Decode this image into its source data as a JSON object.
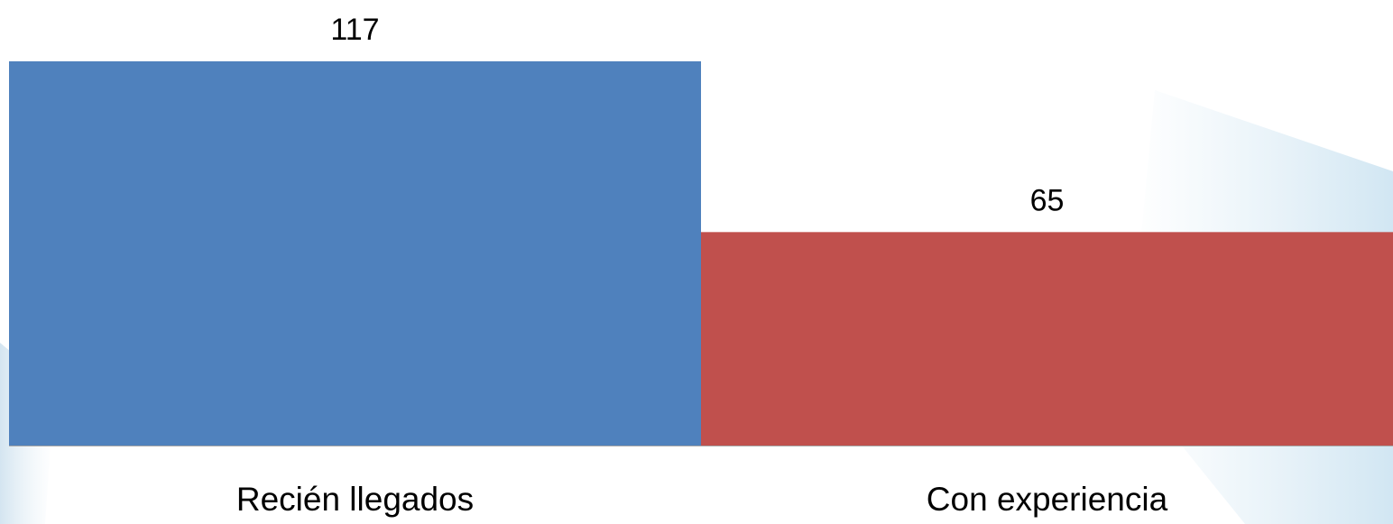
{
  "chart_data": {
    "type": "bar",
    "categories": [
      "Recién llegados",
      "Con experiencia"
    ],
    "values": [
      117,
      65
    ],
    "data_labels": [
      "117",
      "65"
    ],
    "title": "",
    "xlabel": "",
    "ylabel": "",
    "ylim": [
      0,
      117
    ],
    "grid": false,
    "legend": "none",
    "colors": [
      "#4F81BD",
      "#C0504D"
    ],
    "baseline_color": "#A6A6A6"
  }
}
